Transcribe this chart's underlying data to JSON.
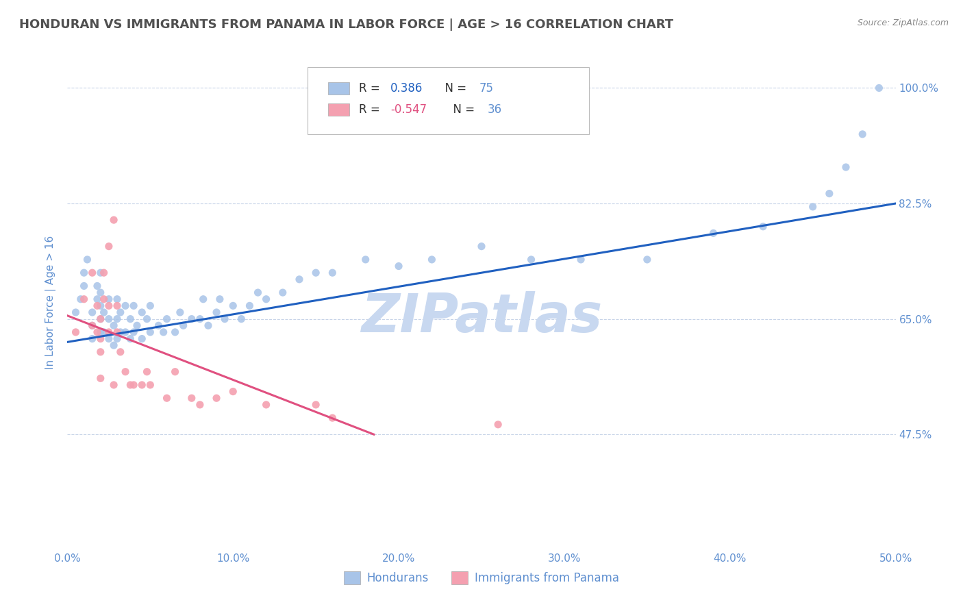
{
  "title": "HONDURAN VS IMMIGRANTS FROM PANAMA IN LABOR FORCE | AGE > 16 CORRELATION CHART",
  "source": "Source: ZipAtlas.com",
  "ylabel": "In Labor Force | Age > 16",
  "xlim": [
    0.0,
    0.5
  ],
  "ylim": [
    0.3,
    1.05
  ],
  "yticks": [
    0.475,
    0.65,
    0.825,
    1.0
  ],
  "ytick_labels": [
    "47.5%",
    "65.0%",
    "82.5%",
    "100.0%"
  ],
  "xticks": [
    0.0,
    0.1,
    0.2,
    0.3,
    0.4,
    0.5
  ],
  "xtick_labels": [
    "0.0%",
    "10.0%",
    "20.0%",
    "30.0%",
    "40.0%",
    "50.0%"
  ],
  "blue_color": "#a8c4e8",
  "pink_color": "#f4a0b0",
  "blue_line_color": "#2060c0",
  "pink_line_color": "#e05080",
  "r_blue": "0.386",
  "n_blue": "75",
  "r_pink": "-0.547",
  "n_pink": "36",
  "watermark": "ZIPatlas",
  "watermark_color": "#c8d8f0",
  "title_color": "#505050",
  "axis_label_color": "#6090d0",
  "tick_color": "#6090d0",
  "legend_label_blue": "Hondurans",
  "legend_label_pink": "Immigrants from Panama",
  "blue_scatter_x": [
    0.005,
    0.008,
    0.01,
    0.01,
    0.012,
    0.015,
    0.015,
    0.015,
    0.018,
    0.018,
    0.02,
    0.02,
    0.02,
    0.02,
    0.02,
    0.022,
    0.022,
    0.025,
    0.025,
    0.025,
    0.028,
    0.028,
    0.03,
    0.03,
    0.03,
    0.032,
    0.032,
    0.035,
    0.035,
    0.038,
    0.038,
    0.04,
    0.04,
    0.042,
    0.045,
    0.045,
    0.048,
    0.05,
    0.05,
    0.055,
    0.058,
    0.06,
    0.065,
    0.068,
    0.07,
    0.075,
    0.08,
    0.082,
    0.085,
    0.09,
    0.092,
    0.095,
    0.1,
    0.105,
    0.11,
    0.115,
    0.12,
    0.13,
    0.14,
    0.15,
    0.16,
    0.18,
    0.2,
    0.22,
    0.25,
    0.28,
    0.31,
    0.35,
    0.39,
    0.42,
    0.45,
    0.46,
    0.47,
    0.48,
    0.49
  ],
  "blue_scatter_y": [
    0.66,
    0.68,
    0.7,
    0.72,
    0.74,
    0.62,
    0.64,
    0.66,
    0.68,
    0.7,
    0.63,
    0.65,
    0.67,
    0.69,
    0.72,
    0.63,
    0.66,
    0.62,
    0.65,
    0.68,
    0.61,
    0.64,
    0.62,
    0.65,
    0.68,
    0.63,
    0.66,
    0.63,
    0.67,
    0.62,
    0.65,
    0.63,
    0.67,
    0.64,
    0.62,
    0.66,
    0.65,
    0.63,
    0.67,
    0.64,
    0.63,
    0.65,
    0.63,
    0.66,
    0.64,
    0.65,
    0.65,
    0.68,
    0.64,
    0.66,
    0.68,
    0.65,
    0.67,
    0.65,
    0.67,
    0.69,
    0.68,
    0.69,
    0.71,
    0.72,
    0.72,
    0.74,
    0.73,
    0.74,
    0.76,
    0.74,
    0.74,
    0.74,
    0.78,
    0.79,
    0.82,
    0.84,
    0.88,
    0.93,
    1.0
  ],
  "pink_scatter_x": [
    0.005,
    0.01,
    0.015,
    0.015,
    0.018,
    0.018,
    0.02,
    0.02,
    0.02,
    0.02,
    0.022,
    0.022,
    0.025,
    0.025,
    0.025,
    0.028,
    0.028,
    0.03,
    0.03,
    0.032,
    0.035,
    0.038,
    0.04,
    0.045,
    0.048,
    0.05,
    0.06,
    0.065,
    0.075,
    0.08,
    0.09,
    0.1,
    0.12,
    0.15,
    0.16,
    0.26
  ],
  "pink_scatter_y": [
    0.63,
    0.68,
    0.64,
    0.72,
    0.63,
    0.67,
    0.56,
    0.6,
    0.62,
    0.65,
    0.68,
    0.72,
    0.63,
    0.67,
    0.76,
    0.8,
    0.55,
    0.63,
    0.67,
    0.6,
    0.57,
    0.55,
    0.55,
    0.55,
    0.57,
    0.55,
    0.53,
    0.57,
    0.53,
    0.52,
    0.53,
    0.54,
    0.52,
    0.52,
    0.5,
    0.49
  ],
  "blue_line_x": [
    0.0,
    0.5
  ],
  "blue_line_y": [
    0.615,
    0.825
  ],
  "pink_line_x": [
    0.0,
    0.185
  ],
  "pink_line_y": [
    0.655,
    0.475
  ]
}
